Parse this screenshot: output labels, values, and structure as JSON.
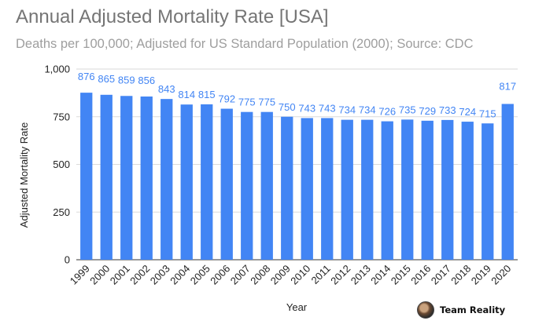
{
  "chart_data": {
    "type": "bar",
    "title": "Annual Adjusted Mortality Rate [USA]",
    "subtitle": "Deaths per 100,000; Adjusted for US Standard Population (2000); Source: CDC",
    "xlabel": "Year",
    "ylabel": "Adjusted Mortality Rate",
    "ylim": [
      0,
      1000
    ],
    "yticks": [
      {
        "value": 0,
        "label": "0"
      },
      {
        "value": 250,
        "label": "250"
      },
      {
        "value": 500,
        "label": "500"
      },
      {
        "value": 750,
        "label": "750"
      },
      {
        "value": 1000,
        "label": "1,000"
      }
    ],
    "categories": [
      "1999",
      "2000",
      "2001",
      "2002",
      "2003",
      "2004",
      "2005",
      "2006",
      "2007",
      "2008",
      "2009",
      "2010",
      "2011",
      "2012",
      "2013",
      "2014",
      "2015",
      "2016",
      "2017",
      "2018",
      "2019",
      "2020"
    ],
    "values": [
      876,
      865,
      859,
      856,
      843,
      814,
      815,
      792,
      775,
      775,
      750,
      743,
      743,
      734,
      734,
      726,
      735,
      729,
      733,
      724,
      715,
      817
    ],
    "grid": true,
    "legend": "none",
    "bar_color": "#4285f4",
    "label_color": "#4285f4",
    "data_labels": true
  },
  "watermark": {
    "text": "Team Reality"
  }
}
